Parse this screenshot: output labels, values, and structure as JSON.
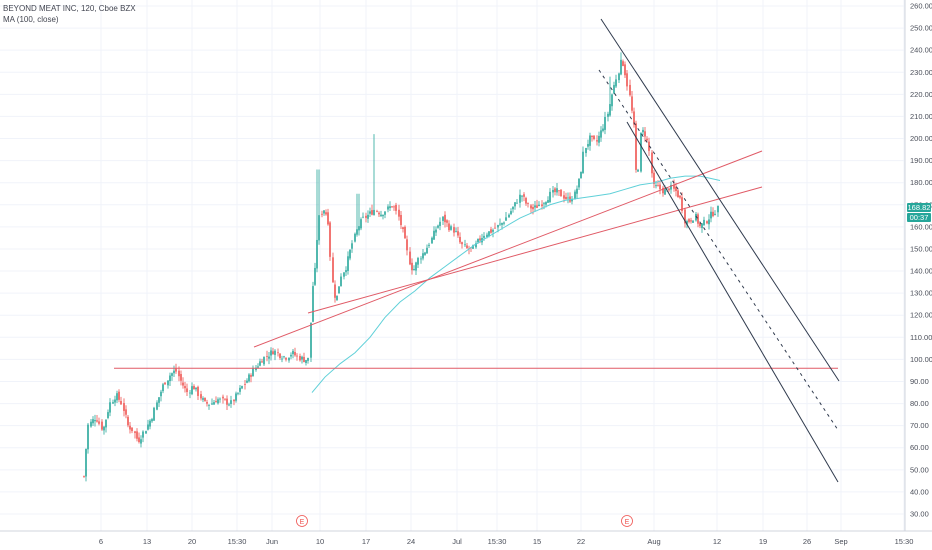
{
  "legend": {
    "symbol_line": "BEYOND MEAT INC, 120, Cboe BZX",
    "indicator_line": "MA (100, close)"
  },
  "price_badge": {
    "price": "168.82",
    "countdown": "00:37",
    "color": "#26a69a"
  },
  "colors": {
    "up": "#26a69a",
    "down": "#ef5350",
    "ma": "#5fd0d8",
    "trend_red": "#e05a66",
    "channel": "#2f3a4d",
    "grid": "#f0f3fa",
    "axis_text": "#4a4e59"
  },
  "earnings_markers": [
    "E",
    "E"
  ],
  "chart_data": {
    "type": "candlestick",
    "title": "BEYOND MEAT INC, 120, Cboe BZX",
    "y_axis_side": "right",
    "ylim": [
      25,
      262
    ],
    "y_ticks": [
      "260.00",
      "250.00",
      "240.00",
      "230.00",
      "220.00",
      "210.00",
      "200.00",
      "190.00",
      "180.00",
      "170.00",
      "160.00",
      "150.00",
      "140.00",
      "130.00",
      "120.00",
      "110.00",
      "100.00",
      "90.00",
      "80.00",
      "70.00",
      "60.00",
      "50.00",
      "40.00",
      "30.00"
    ],
    "x_ticks": [
      "6",
      "13",
      "20",
      "15:30",
      "Jun",
      "10",
      "17",
      "24",
      "Jul",
      "15:30",
      "15",
      "22",
      "Aug",
      "12",
      "19",
      "26",
      "Sep",
      "15:30"
    ],
    "key_points": [
      {
        "x": "May 2",
        "close": 47,
        "note": "first bar"
      },
      {
        "x": "May 6",
        "close": 80
      },
      {
        "x": "May 13",
        "close": 63
      },
      {
        "x": "May 17",
        "close": 95
      },
      {
        "x": "May 28",
        "close": 104
      },
      {
        "x": "Jun 5",
        "close": 100
      },
      {
        "x": "Jun 6",
        "close": 165,
        "high": 186
      },
      {
        "x": "Jun 11",
        "close": 126
      },
      {
        "x": "Jun 17",
        "high": 202
      },
      {
        "x": "Jun 24",
        "close": 140
      },
      {
        "x": "Jul 5",
        "close": 150
      },
      {
        "x": "Jul 22",
        "close": 195
      },
      {
        "x": "Jul 26",
        "high": 239
      },
      {
        "x": "Jul 30",
        "close": 178
      },
      {
        "x": "Aug 7",
        "close": 160
      },
      {
        "x": "Aug 12",
        "close": 168.82
      }
    ],
    "moving_average": {
      "name": "MA (100, close)",
      "start": 85,
      "end": 181
    },
    "drawings": {
      "horizontal_support": 96,
      "rising_trendlines": 2,
      "falling_channel_lines": 3
    }
  }
}
